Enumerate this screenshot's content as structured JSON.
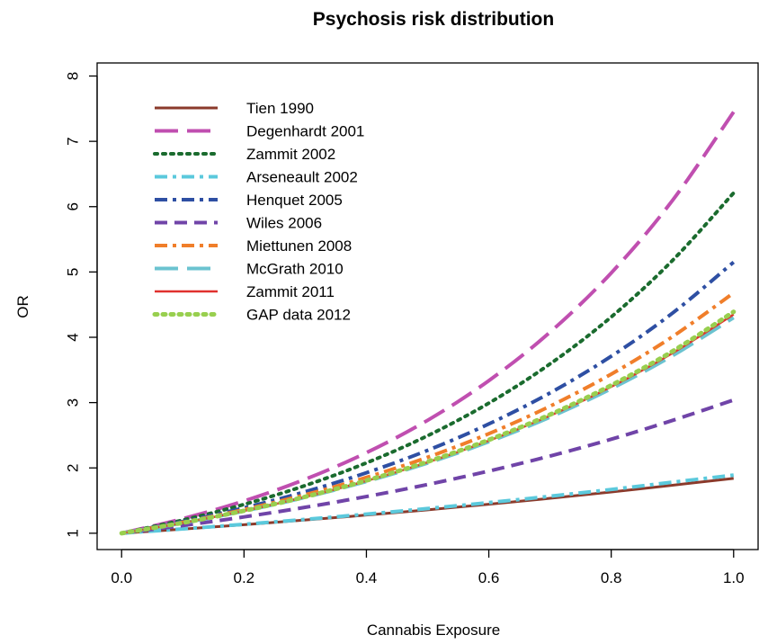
{
  "chart_data": {
    "type": "line",
    "title": "Psychosis risk distribution",
    "xlabel": "Cannabis Exposure",
    "ylabel": "OR",
    "xlim": [
      -0.04,
      1.04
    ],
    "ylim": [
      0.75,
      8.2
    ],
    "x_ticks": [
      0.0,
      0.2,
      0.4,
      0.6,
      0.8,
      1.0
    ],
    "x_tick_labels": [
      "0.0",
      "0.2",
      "0.4",
      "0.6",
      "0.8",
      "1.0"
    ],
    "y_ticks": [
      1,
      2,
      3,
      4,
      5,
      6,
      7,
      8
    ],
    "y_tick_labels": [
      "1",
      "2",
      "3",
      "4",
      "5",
      "6",
      "7",
      "8"
    ],
    "grid": false,
    "legend_position": "top-left",
    "x": [
      0.0,
      0.1,
      0.2,
      0.3,
      0.4,
      0.5,
      0.6,
      0.7,
      0.8,
      0.9,
      1.0
    ],
    "series": [
      {
        "name": "Tien 1990",
        "color": "#8B3A2B",
        "dash": "solid",
        "width": 3,
        "values": [
          1.0,
          1.063,
          1.13,
          1.202,
          1.278,
          1.358,
          1.444,
          1.535,
          1.632,
          1.735,
          1.84
        ]
      },
      {
        "name": "Degenhardt 2001",
        "color": "#C04FB0",
        "dash": "longdash",
        "width": 4,
        "values": [
          1.0,
          1.222,
          1.494,
          1.826,
          2.233,
          2.729,
          3.336,
          4.078,
          4.985,
          6.094,
          7.45
        ]
      },
      {
        "name": "Zammit 2002",
        "color": "#1A6B2E",
        "dash": "dotted",
        "width": 4,
        "values": [
          1.0,
          1.201,
          1.441,
          1.73,
          2.077,
          2.493,
          2.992,
          3.592,
          4.311,
          5.175,
          6.21
        ]
      },
      {
        "name": "Arseneault 2002",
        "color": "#5BC9DC",
        "dash": "dashdot",
        "width": 4,
        "values": [
          1.0,
          1.066,
          1.137,
          1.212,
          1.292,
          1.378,
          1.469,
          1.566,
          1.67,
          1.781,
          1.89
        ]
      },
      {
        "name": "Henquet 2005",
        "color": "#2E4FA3",
        "dash": "dashdot",
        "width": 4,
        "values": [
          1.0,
          1.178,
          1.388,
          1.635,
          1.926,
          2.269,
          2.673,
          3.148,
          3.709,
          4.369,
          5.15
        ]
      },
      {
        "name": "Wiles 2006",
        "color": "#7044A8",
        "dash": "dashed",
        "width": 4,
        "values": [
          1.0,
          1.118,
          1.25,
          1.397,
          1.562,
          1.746,
          1.952,
          2.182,
          2.439,
          2.727,
          3.04
        ]
      },
      {
        "name": "Miettunen 2008",
        "color": "#F07E2A",
        "dash": "dashdot",
        "width": 4,
        "values": [
          1.0,
          1.167,
          1.362,
          1.589,
          1.854,
          2.163,
          2.524,
          2.945,
          3.436,
          4.009,
          4.68
        ]
      },
      {
        "name": "McGrath 2010",
        "color": "#6BC3D0",
        "dash": "longdash",
        "width": 4,
        "values": [
          1.0,
          1.157,
          1.339,
          1.549,
          1.792,
          2.074,
          2.4,
          2.777,
          3.213,
          3.718,
          4.3
        ]
      },
      {
        "name": "Zammit 2011",
        "color": "#E0312E",
        "dash": "solid",
        "width": 2.5,
        "values": [
          1.0,
          1.158,
          1.342,
          1.555,
          1.801,
          2.086,
          2.417,
          2.8,
          3.243,
          3.757,
          4.35
        ]
      },
      {
        "name": "GAP data 2012",
        "color": "#98CF4F",
        "dash": "dotted",
        "width": 5,
        "values": [
          1.0,
          1.16,
          1.344,
          1.558,
          1.807,
          2.095,
          2.429,
          2.816,
          3.265,
          3.785,
          4.39
        ]
      }
    ]
  }
}
